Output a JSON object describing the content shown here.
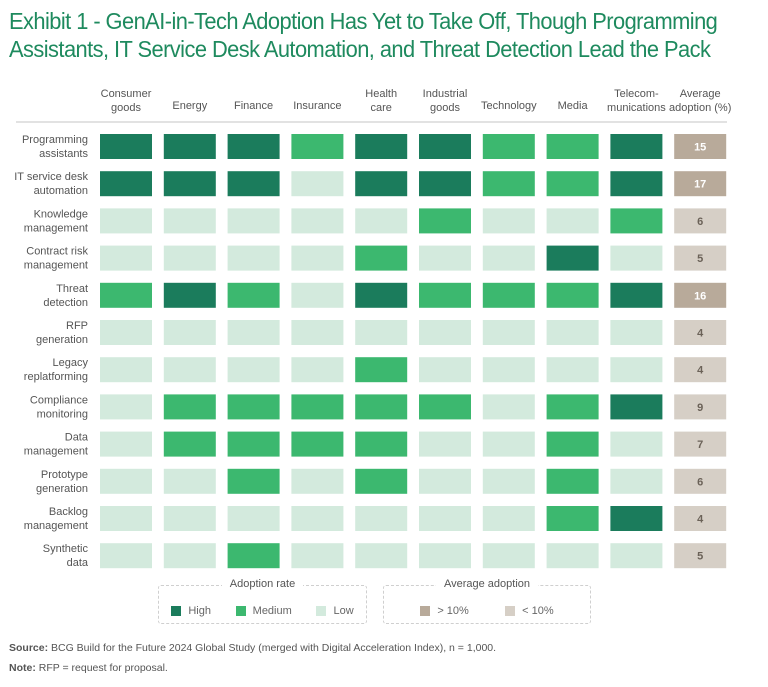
{
  "title_lines": [
    "Exhibit 1 - GenAI-in-Tech Adoption Has Yet to Take Off, Though Programming",
    "Assistants, IT Service Desk Automation, and Threat Detection Lead the Pack"
  ],
  "colors": {
    "high": "#1b7c5c",
    "medium": "#3cb86f",
    "low": "#d3eadd",
    "avg_high": "#b8aa9a",
    "avg_low": "#d6cfc6",
    "avg_text_high": "#ffffff",
    "avg_text_low": "#6b6258",
    "title": "#1e8a5e"
  },
  "chart_data": {
    "type": "heatmap",
    "title": "Exhibit 1 - GenAI-in-Tech Adoption Has Yet to Take Off, Though Programming Assistants, IT Service Desk Automation, and Threat Detection Lead the Pack",
    "columns": [
      {
        "key": "consumer_goods",
        "label_lines": [
          "Consumer",
          "goods"
        ]
      },
      {
        "key": "energy",
        "label_lines": [
          "Energy"
        ]
      },
      {
        "key": "finance",
        "label_lines": [
          "Finance"
        ]
      },
      {
        "key": "insurance",
        "label_lines": [
          "Insurance"
        ]
      },
      {
        "key": "health_care",
        "label_lines": [
          "Health",
          "care"
        ]
      },
      {
        "key": "industrial_goods",
        "label_lines": [
          "Industrial",
          "goods"
        ]
      },
      {
        "key": "technology",
        "label_lines": [
          "Technology"
        ]
      },
      {
        "key": "media",
        "label_lines": [
          "Media"
        ]
      },
      {
        "key": "telecommunications",
        "label_lines": [
          "Telecom-",
          "munications"
        ]
      }
    ],
    "average_column_label_lines": [
      "Average",
      "adoption (%)"
    ],
    "scale": [
      "Low",
      "Medium",
      "High"
    ],
    "rows": [
      {
        "label_lines": [
          "Programming",
          "assistants"
        ],
        "values": [
          "High",
          "High",
          "High",
          "Medium",
          "High",
          "High",
          "Medium",
          "Medium",
          "High"
        ],
        "average": 15
      },
      {
        "label_lines": [
          "IT service desk",
          "automation"
        ],
        "values": [
          "High",
          "High",
          "High",
          "Low",
          "High",
          "High",
          "Medium",
          "Medium",
          "High"
        ],
        "average": 17
      },
      {
        "label_lines": [
          "Knowledge",
          "management"
        ],
        "values": [
          "Low",
          "Low",
          "Low",
          "Low",
          "Low",
          "Medium",
          "Low",
          "Low",
          "Medium"
        ],
        "average": 6
      },
      {
        "label_lines": [
          "Contract risk",
          "management"
        ],
        "values": [
          "Low",
          "Low",
          "Low",
          "Low",
          "Medium",
          "Low",
          "Low",
          "High",
          "Low"
        ],
        "average": 5
      },
      {
        "label_lines": [
          "Threat",
          "detection"
        ],
        "values": [
          "Medium",
          "High",
          "Medium",
          "Low",
          "High",
          "Medium",
          "Medium",
          "Medium",
          "High"
        ],
        "average": 16
      },
      {
        "label_lines": [
          "RFP",
          "generation"
        ],
        "values": [
          "Low",
          "Low",
          "Low",
          "Low",
          "Low",
          "Low",
          "Low",
          "Low",
          "Low"
        ],
        "average": 4
      },
      {
        "label_lines": [
          "Legacy",
          "replatforming"
        ],
        "values": [
          "Low",
          "Low",
          "Low",
          "Low",
          "Medium",
          "Low",
          "Low",
          "Low",
          "Low"
        ],
        "average": 4
      },
      {
        "label_lines": [
          "Compliance",
          "monitoring"
        ],
        "values": [
          "Low",
          "Medium",
          "Medium",
          "Medium",
          "Medium",
          "Medium",
          "Low",
          "Medium",
          "High"
        ],
        "average": 9
      },
      {
        "label_lines": [
          "Data",
          "management"
        ],
        "values": [
          "Low",
          "Medium",
          "Medium",
          "Medium",
          "Medium",
          "Low",
          "Low",
          "Medium",
          "Low"
        ],
        "average": 7
      },
      {
        "label_lines": [
          "Prototype",
          "generation"
        ],
        "values": [
          "Low",
          "Low",
          "Medium",
          "Low",
          "Medium",
          "Low",
          "Low",
          "Medium",
          "Low"
        ],
        "average": 6
      },
      {
        "label_lines": [
          "Backlog",
          "management"
        ],
        "values": [
          "Low",
          "Low",
          "Low",
          "Low",
          "Low",
          "Low",
          "Low",
          "Medium",
          "High"
        ],
        "average": 4
      },
      {
        "label_lines": [
          "Synthetic",
          "data"
        ],
        "values": [
          "Low",
          "Low",
          "Medium",
          "Low",
          "Low",
          "Low",
          "Low",
          "Low",
          "Low"
        ],
        "average": 5
      }
    ],
    "average_threshold_percent": 10
  },
  "legend": {
    "adoption": {
      "title": "Adoption rate",
      "items": [
        {
          "label": "High",
          "level": "high"
        },
        {
          "label": "Medium",
          "level": "medium"
        },
        {
          "label": "Low",
          "level": "low"
        }
      ]
    },
    "average": {
      "title": "Average adoption",
      "items": [
        {
          "label": "> 10%",
          "level": "avg_high"
        },
        {
          "label": "< 10%",
          "level": "avg_low"
        }
      ]
    }
  },
  "footer": {
    "source_label": "Source:",
    "source_text": " BCG Build for the Future 2024 Global Study (merged with Digital Acceleration Index), n = 1,000.",
    "note_label": "Note:",
    "note_text": " RFP = request for proposal."
  }
}
